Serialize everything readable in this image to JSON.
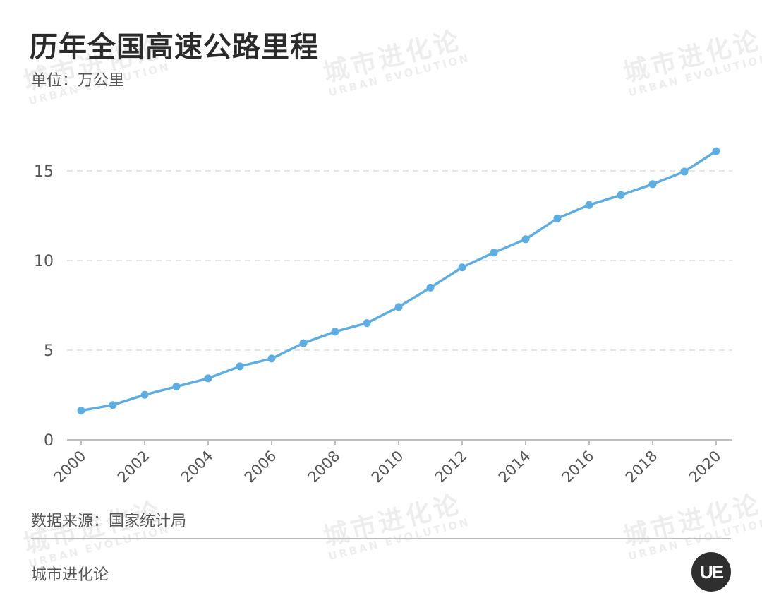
{
  "header": {
    "title": "历年全国高速公路里程",
    "unit": "单位：万公里"
  },
  "footer": {
    "source": "数据来源：国家统计局",
    "brand": "城市进化论",
    "logo_text": "UE"
  },
  "watermark": {
    "cn": "城市进化论",
    "en": "URBAN EVOLUTION"
  },
  "colors": {
    "line": "#5dade2",
    "grid": "#dddddd",
    "axis": "#bdbdbd",
    "text": "#555555"
  },
  "chart_data": {
    "type": "line",
    "title": "历年全国高速公路里程",
    "ylabel": "单位：万公里",
    "x": [
      2000,
      2001,
      2002,
      2003,
      2004,
      2005,
      2006,
      2007,
      2008,
      2009,
      2010,
      2011,
      2012,
      2013,
      2014,
      2015,
      2016,
      2017,
      2018,
      2019,
      2020
    ],
    "xticks": [
      "2000",
      "2002",
      "2004",
      "2006",
      "2008",
      "2010",
      "2012",
      "2014",
      "2016",
      "2018",
      "2020"
    ],
    "yticks": [
      "0",
      "5",
      "10",
      "15"
    ],
    "ylim": [
      0,
      17.5
    ],
    "series": [
      {
        "values": [
          1.63,
          1.94,
          2.51,
          2.97,
          3.43,
          4.1,
          4.53,
          5.39,
          6.03,
          6.51,
          7.41,
          8.49,
          9.62,
          10.44,
          11.19,
          12.35,
          13.1,
          13.65,
          14.26,
          14.96,
          16.1
        ]
      }
    ],
    "grid": true,
    "legend": "none"
  }
}
